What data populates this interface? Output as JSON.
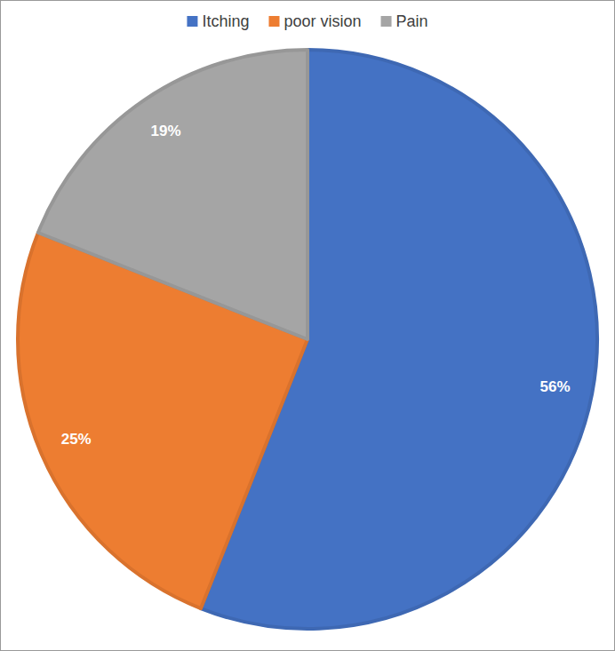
{
  "chart_data": {
    "type": "pie",
    "categories": [
      "Itching",
      "poor vision",
      "Pain"
    ],
    "values": [
      56,
      25,
      19
    ],
    "value_labels": [
      "56%",
      "25%",
      "19%"
    ],
    "colors": [
      "#4472c4",
      "#ed7d31",
      "#a5a5a5"
    ],
    "data_labels": true,
    "legend": "top"
  }
}
